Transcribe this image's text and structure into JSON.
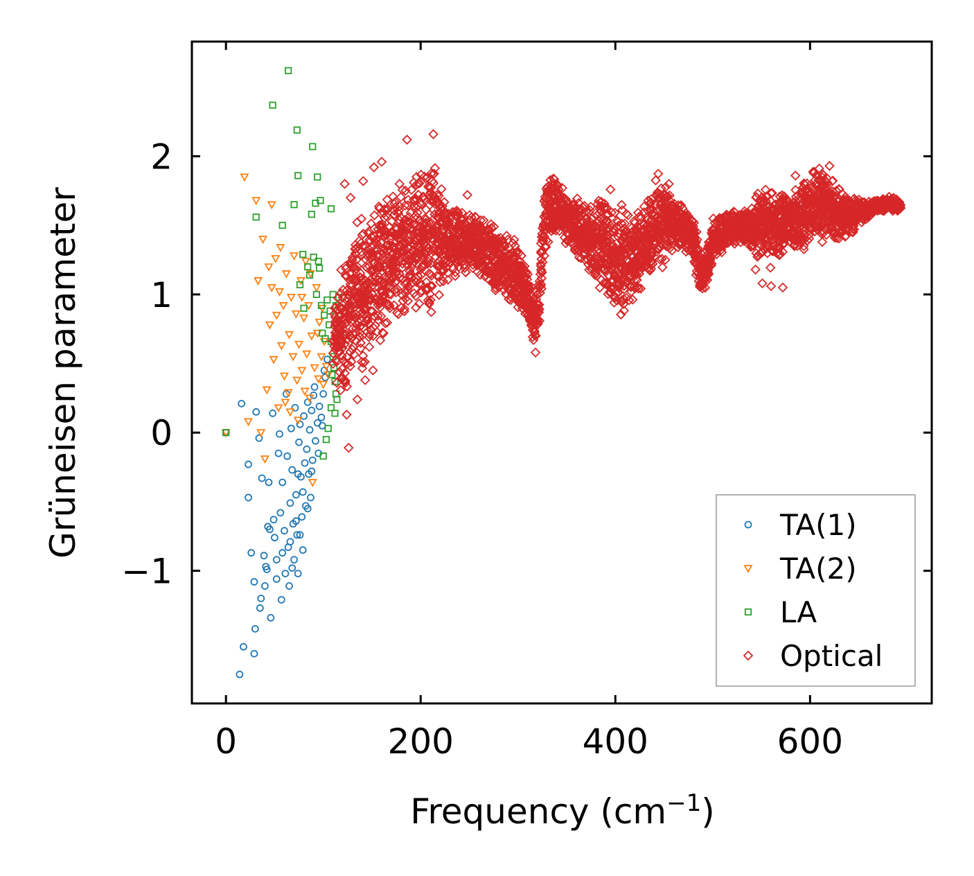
{
  "chart_data": {
    "type": "scatter",
    "title": "",
    "xlabel_base": "Frequency (cm",
    "xlabel_sup": "−1",
    "xlabel_end": ")",
    "ylabel": "Grüneisen parameter",
    "xlim": [
      -35,
      725
    ],
    "ylim": [
      -1.96,
      2.83
    ],
    "xticks": [
      0,
      200,
      400,
      600
    ],
    "xtick_labels": [
      "0",
      "200",
      "400",
      "600"
    ],
    "yticks": [
      -1,
      0,
      1,
      2
    ],
    "ytick_labels": [
      "−1",
      "0",
      "1",
      "2"
    ],
    "grid": false,
    "legend_position": "lower-right",
    "series": [
      {
        "name": "TA(1)",
        "marker": "circle",
        "color": "#1f77b4",
        "points": [
          [
            0,
            0.0
          ],
          [
            16,
            0.21
          ],
          [
            23,
            -0.23
          ],
          [
            23,
            -0.47
          ],
          [
            26,
            -0.87
          ],
          [
            29,
            -1.08
          ],
          [
            30,
            -1.42
          ],
          [
            31,
            0.15
          ],
          [
            34,
            -0.04
          ],
          [
            36,
            -1.2
          ],
          [
            37,
            -0.33
          ],
          [
            39,
            -0.89
          ],
          [
            40,
            -1.11
          ],
          [
            42,
            -0.99
          ],
          [
            44,
            -0.36
          ],
          [
            45,
            -0.7
          ],
          [
            46,
            -1.34
          ],
          [
            48,
            0.14
          ],
          [
            49,
            -0.63
          ],
          [
            50,
            -0.76
          ],
          [
            52,
            -0.92
          ],
          [
            54,
            -0.15
          ],
          [
            55,
            -0.01
          ],
          [
            56,
            -0.58
          ],
          [
            57,
            -1.21
          ],
          [
            58,
            -0.36
          ],
          [
            60,
            -0.71
          ],
          [
            61,
            -1.02
          ],
          [
            62,
            0.28
          ],
          [
            63,
            -0.17
          ],
          [
            64,
            -0.83
          ],
          [
            65,
            -1.11
          ],
          [
            66,
            -0.51
          ],
          [
            67,
            0.03
          ],
          [
            68,
            -0.27
          ],
          [
            69,
            -0.66
          ],
          [
            70,
            -0.92
          ],
          [
            71,
            0.18
          ],
          [
            72,
            -0.45
          ],
          [
            73,
            -0.74
          ],
          [
            74,
            -1.02
          ],
          [
            75,
            -0.07
          ],
          [
            76,
            0.06
          ],
          [
            77,
            -0.32
          ],
          [
            78,
            -0.61
          ],
          [
            79,
            -0.85
          ],
          [
            80,
            0.12
          ],
          [
            81,
            -0.22
          ],
          [
            82,
            -0.53
          ],
          [
            83,
            -0.12
          ],
          [
            84,
            0.22
          ],
          [
            85,
            -0.3
          ],
          [
            86,
            0.02
          ],
          [
            87,
            -0.47
          ],
          [
            88,
            0.16
          ],
          [
            89,
            -0.2
          ],
          [
            90,
            0.27
          ],
          [
            92,
            -0.06
          ],
          [
            94,
            0.07
          ],
          [
            96,
            0.19
          ],
          [
            98,
            0.11
          ],
          [
            100,
            0.28
          ],
          [
            102,
            0.4
          ],
          [
            104,
            0.53
          ],
          [
            14,
            -1.75
          ],
          [
            18,
            -1.55
          ],
          [
            29,
            -1.6
          ],
          [
            35,
            -1.27
          ],
          [
            41,
            -0.97
          ],
          [
            52,
            -1.06
          ],
          [
            58,
            -0.87
          ],
          [
            66,
            -0.79
          ],
          [
            72,
            -0.64
          ],
          [
            76,
            -0.74
          ],
          [
            79,
            -0.43
          ],
          [
            84,
            -0.55
          ],
          [
            88,
            -0.28
          ],
          [
            91,
            0.33
          ],
          [
            95,
            -0.15
          ],
          [
            99,
            0.05
          ],
          [
            101,
            0.45
          ],
          [
            43,
            -0.68
          ],
          [
            68,
            -0.98
          ],
          [
            74,
            -0.3
          ]
        ]
      },
      {
        "name": "TA(2)",
        "marker": "triangle-down",
        "color": "#ff7f0e",
        "points": [
          [
            0,
            0.0
          ],
          [
            19,
            1.85
          ],
          [
            23,
            0.08
          ],
          [
            31,
            1.68
          ],
          [
            33,
            1.1
          ],
          [
            36,
            0.0
          ],
          [
            38,
            1.4
          ],
          [
            40,
            -0.19
          ],
          [
            42,
            0.31
          ],
          [
            44,
            1.2
          ],
          [
            45,
            0.78
          ],
          [
            47,
            1.05
          ],
          [
            49,
            0.53
          ],
          [
            51,
            1.26
          ],
          [
            52,
            0.85
          ],
          [
            54,
            0.18
          ],
          [
            56,
            1.34
          ],
          [
            57,
            0.63
          ],
          [
            59,
            0.92
          ],
          [
            60,
            0.41
          ],
          [
            62,
            1.15
          ],
          [
            64,
            0.29
          ],
          [
            65,
            0.71
          ],
          [
            67,
            0.98
          ],
          [
            69,
            0.55
          ],
          [
            70,
            1.28
          ],
          [
            72,
            0.86
          ],
          [
            73,
            0.38
          ],
          [
            75,
            0.64
          ],
          [
            77,
            1.1
          ],
          [
            78,
            0.45
          ],
          [
            80,
            0.83
          ],
          [
            81,
            0.3
          ],
          [
            83,
            0.57
          ],
          [
            85,
            0.92
          ],
          [
            86,
            0.25
          ],
          [
            88,
            0.7
          ],
          [
            89,
            -0.36
          ],
          [
            91,
            0.47
          ],
          [
            93,
            1.05
          ],
          [
            95,
            0.39
          ],
          [
            96,
            0.8
          ],
          [
            98,
            0.55
          ],
          [
            100,
            0.35
          ],
          [
            101,
            0.66
          ],
          [
            103,
            0.48
          ],
          [
            105,
            0.42
          ],
          [
            47,
            1.65
          ],
          [
            55,
            1.02
          ],
          [
            61,
            0.22
          ],
          [
            66,
            0.15
          ],
          [
            74,
            0.09
          ],
          [
            82,
            1.24
          ],
          [
            87,
            1.15
          ],
          [
            94,
            0.72
          ],
          [
            99,
            0.9
          ],
          [
            78,
            0.98
          ]
        ]
      },
      {
        "name": "LA",
        "marker": "square",
        "color": "#2ca02c",
        "points": [
          [
            0,
            0.0
          ],
          [
            48,
            2.37
          ],
          [
            64,
            2.62
          ],
          [
            73,
            2.19
          ],
          [
            89,
            2.07
          ],
          [
            74,
            1.86
          ],
          [
            94,
            1.85
          ],
          [
            31,
            1.56
          ],
          [
            58,
            1.5
          ],
          [
            70,
            1.65
          ],
          [
            88,
            1.58
          ],
          [
            92,
            1.66
          ],
          [
            97,
            1.68
          ],
          [
            108,
            1.62
          ],
          [
            79,
            1.29
          ],
          [
            95,
            1.24
          ],
          [
            76,
            1.07
          ],
          [
            80,
            0.9
          ],
          [
            86,
            1.14
          ],
          [
            93,
            1.0
          ],
          [
            98,
            0.92
          ],
          [
            101,
            0.85
          ],
          [
            104,
            0.96
          ],
          [
            106,
            0.78
          ],
          [
            108,
            0.66
          ],
          [
            110,
            0.55
          ],
          [
            111,
            0.47
          ],
          [
            112,
            0.37
          ],
          [
            113,
            0.28
          ],
          [
            114,
            0.76
          ],
          [
            115,
            0.82
          ],
          [
            116,
            0.98
          ],
          [
            117,
            0.62
          ],
          [
            105,
            0.03
          ],
          [
            100,
            -0.17
          ],
          [
            103,
            -0.05
          ],
          [
            108,
            0.18
          ],
          [
            112,
            0.14
          ],
          [
            84,
            1.2
          ],
          [
            90,
            1.27
          ],
          [
            96,
            1.19
          ],
          [
            99,
            0.72
          ],
          [
            102,
            0.68
          ],
          [
            107,
            0.88
          ],
          [
            110,
            1.0
          ],
          [
            113,
            0.92
          ],
          [
            109,
            0.42
          ],
          [
            114,
            0.24
          ]
        ]
      },
      {
        "name": "Optical",
        "marker": "diamond",
        "color": "#d62728",
        "envelope": [
          [
            110,
            0.3,
            1.0
          ],
          [
            120,
            0.2,
            1.35
          ],
          [
            130,
            0.35,
            1.5
          ],
          [
            140,
            0.42,
            1.6
          ],
          [
            150,
            0.55,
            1.68
          ],
          [
            160,
            0.65,
            1.75
          ],
          [
            170,
            0.72,
            1.82
          ],
          [
            180,
            0.8,
            1.86
          ],
          [
            190,
            0.86,
            1.9
          ],
          [
            200,
            0.88,
            1.95
          ],
          [
            205,
            0.82,
            1.98
          ],
          [
            210,
            0.82,
            2.02
          ],
          [
            215,
            0.9,
            2.0
          ],
          [
            220,
            0.98,
            1.8
          ],
          [
            230,
            1.05,
            1.65
          ],
          [
            240,
            1.1,
            1.62
          ],
          [
            250,
            1.15,
            1.63
          ],
          [
            260,
            1.12,
            1.58
          ],
          [
            270,
            1.05,
            1.55
          ],
          [
            280,
            0.98,
            1.5
          ],
          [
            290,
            0.92,
            1.45
          ],
          [
            300,
            0.88,
            1.4
          ],
          [
            305,
            0.85,
            1.3
          ],
          [
            310,
            0.78,
            1.2
          ],
          [
            315,
            0.65,
            1.05
          ],
          [
            318,
            0.6,
            1.0
          ],
          [
            322,
            0.75,
            1.2
          ],
          [
            326,
            1.2,
            1.75
          ],
          [
            330,
            1.3,
            1.95
          ],
          [
            335,
            1.35,
            1.92
          ],
          [
            340,
            1.38,
            1.85
          ],
          [
            350,
            1.35,
            1.75
          ],
          [
            360,
            1.25,
            1.72
          ],
          [
            370,
            1.15,
            1.7
          ],
          [
            380,
            1.05,
            1.68
          ],
          [
            390,
            0.95,
            1.72
          ],
          [
            400,
            0.88,
            1.7
          ],
          [
            410,
            0.82,
            1.66
          ],
          [
            415,
            0.85,
            1.64
          ],
          [
            420,
            0.95,
            1.62
          ],
          [
            430,
            1.05,
            1.7
          ],
          [
            440,
            1.1,
            1.85
          ],
          [
            445,
            1.15,
            1.9
          ],
          [
            450,
            1.2,
            1.85
          ],
          [
            460,
            1.25,
            1.75
          ],
          [
            470,
            1.3,
            1.65
          ],
          [
            480,
            1.25,
            1.55
          ],
          [
            485,
            1.05,
            1.45
          ],
          [
            490,
            0.95,
            1.3
          ],
          [
            495,
            1.0,
            1.4
          ],
          [
            500,
            1.25,
            1.55
          ],
          [
            510,
            1.3,
            1.6
          ],
          [
            520,
            1.35,
            1.62
          ],
          [
            530,
            1.35,
            1.6
          ],
          [
            540,
            1.3,
            1.65
          ],
          [
            550,
            1.2,
            1.85
          ],
          [
            560,
            1.15,
            1.8
          ],
          [
            570,
            1.25,
            1.75
          ],
          [
            580,
            1.3,
            1.78
          ],
          [
            590,
            1.28,
            1.85
          ],
          [
            600,
            1.3,
            1.9
          ],
          [
            610,
            1.35,
            1.97
          ],
          [
            620,
            1.35,
            1.9
          ],
          [
            630,
            1.35,
            1.8
          ],
          [
            640,
            1.4,
            1.75
          ],
          [
            650,
            1.5,
            1.7
          ],
          [
            660,
            1.55,
            1.68
          ],
          [
            670,
            1.6,
            1.7
          ],
          [
            680,
            1.6,
            1.72
          ],
          [
            690,
            1.6,
            1.7
          ],
          [
            693,
            1.62,
            1.65
          ]
        ],
        "outliers": [
          [
            186,
            2.12
          ],
          [
            213,
            2.16
          ],
          [
            160,
            1.96
          ],
          [
            152,
            1.92
          ],
          [
            122,
            1.8
          ],
          [
            128,
            1.7
          ],
          [
            141,
            1.82
          ],
          [
            124,
            0.13
          ],
          [
            126,
            -0.11
          ],
          [
            135,
            0.24
          ],
          [
            143,
            0.38
          ],
          [
            151,
            0.45
          ],
          [
            318,
            0.58
          ],
          [
            551,
            1.08
          ],
          [
            560,
            1.06
          ],
          [
            572,
            1.05
          ],
          [
            544,
            1.18
          ],
          [
            585,
            1.86
          ],
          [
            248,
            1.72
          ],
          [
            395,
            1.76
          ],
          [
            455,
            1.8
          ],
          [
            620,
            1.93
          ]
        ]
      }
    ]
  }
}
